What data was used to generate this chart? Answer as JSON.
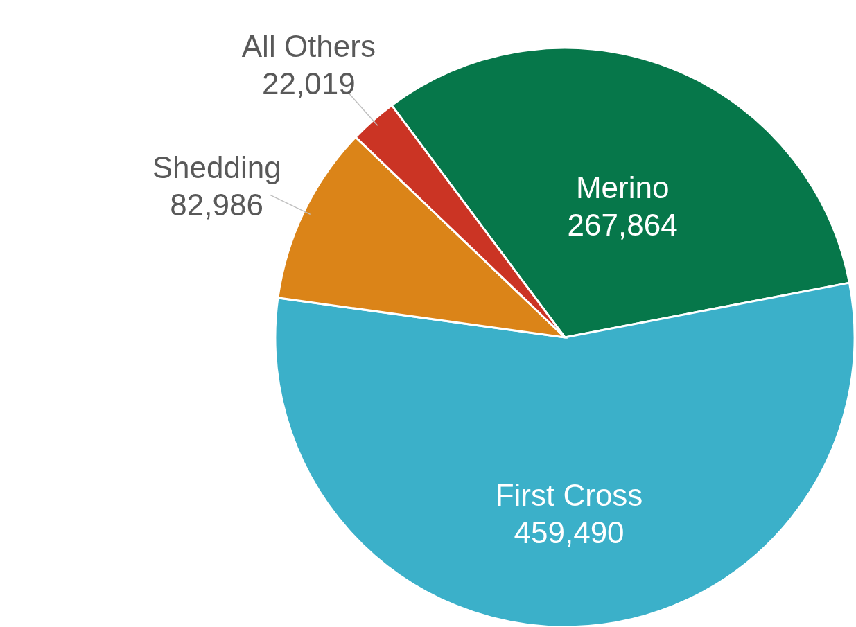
{
  "chart_data": {
    "type": "pie",
    "categories": [
      "Merino",
      "First Cross",
      "Shedding",
      "All Others"
    ],
    "values": [
      267864,
      459490,
      82986,
      22019
    ],
    "colors": [
      "#06774a",
      "#3bb0c9",
      "#db8418",
      "#cb3424"
    ],
    "value_labels": [
      "267,864",
      "459,490",
      "82,986",
      "22,019"
    ]
  }
}
